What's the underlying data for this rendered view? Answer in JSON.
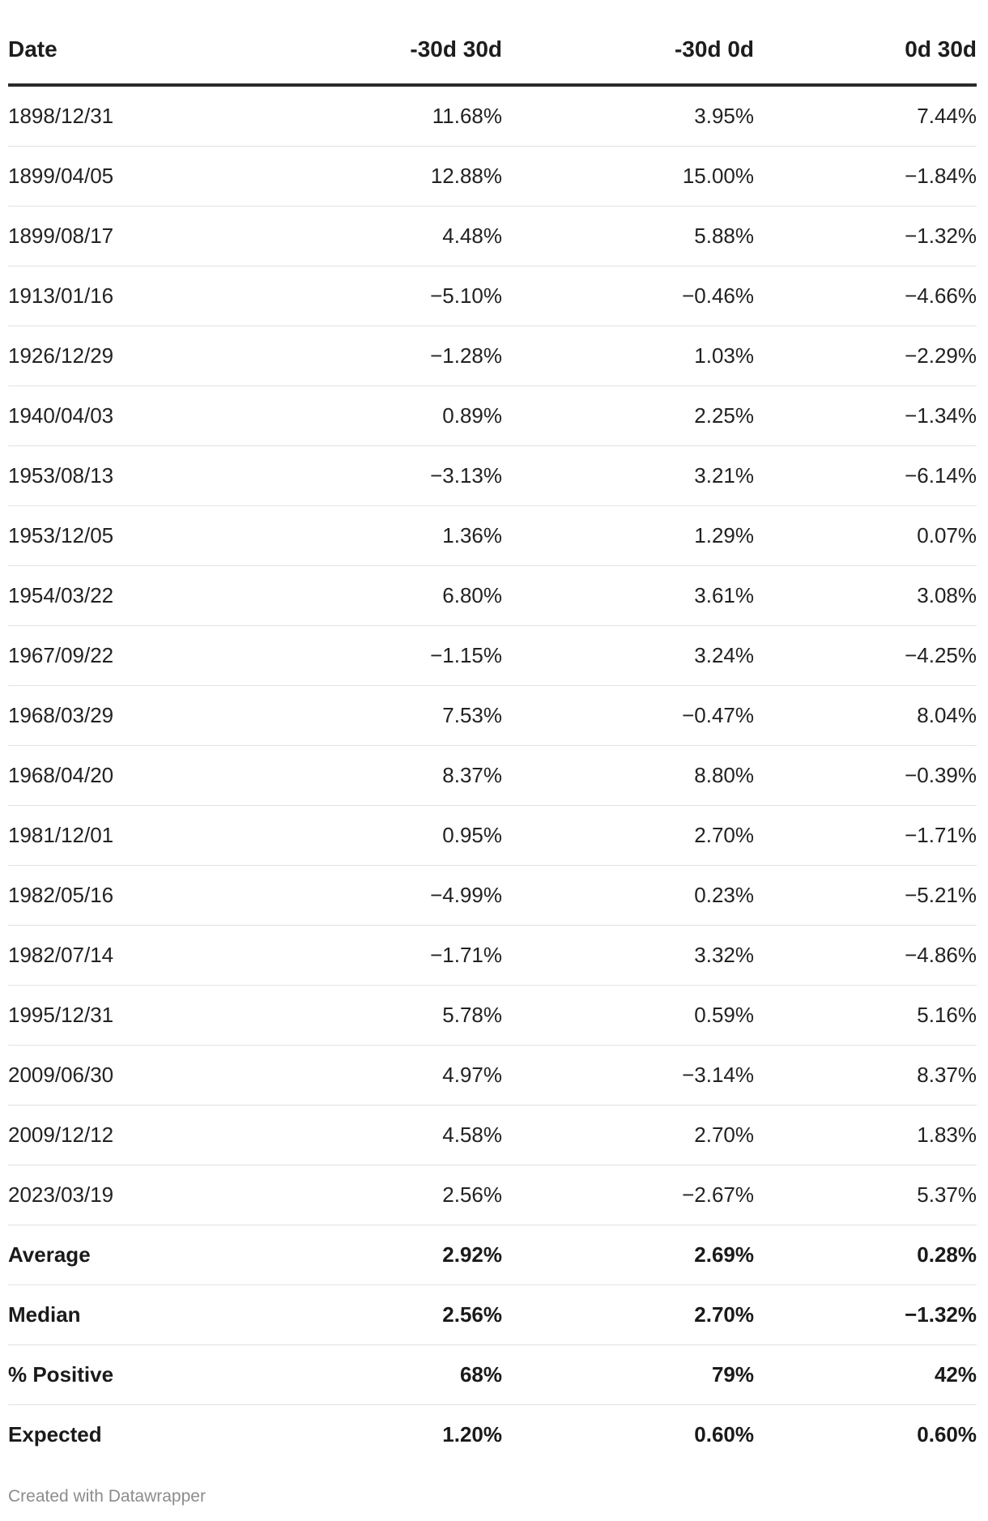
{
  "chart_data": {
    "type": "table",
    "columns": [
      "Date",
      "-30d 30d",
      "-30d 0d",
      "0d 30d"
    ],
    "rows": [
      [
        "1898/12/31",
        "11.68%",
        "3.95%",
        "7.44%"
      ],
      [
        "1899/04/05",
        "12.88%",
        "15.00%",
        "−1.84%"
      ],
      [
        "1899/08/17",
        "4.48%",
        "5.88%",
        "−1.32%"
      ],
      [
        "1913/01/16",
        "−5.10%",
        "−0.46%",
        "−4.66%"
      ],
      [
        "1926/12/29",
        "−1.28%",
        "1.03%",
        "−2.29%"
      ],
      [
        "1940/04/03",
        "0.89%",
        "2.25%",
        "−1.34%"
      ],
      [
        "1953/08/13",
        "−3.13%",
        "3.21%",
        "−6.14%"
      ],
      [
        "1953/12/05",
        "1.36%",
        "1.29%",
        "0.07%"
      ],
      [
        "1954/03/22",
        "6.80%",
        "3.61%",
        "3.08%"
      ],
      [
        "1967/09/22",
        "−1.15%",
        "3.24%",
        "−4.25%"
      ],
      [
        "1968/03/29",
        "7.53%",
        "−0.47%",
        "8.04%"
      ],
      [
        "1968/04/20",
        "8.37%",
        "8.80%",
        "−0.39%"
      ],
      [
        "1981/12/01",
        "0.95%",
        "2.70%",
        "−1.71%"
      ],
      [
        "1982/05/16",
        "−4.99%",
        "0.23%",
        "−5.21%"
      ],
      [
        "1982/07/14",
        "−1.71%",
        "3.32%",
        "−4.86%"
      ],
      [
        "1995/12/31",
        "5.78%",
        "0.59%",
        "5.16%"
      ],
      [
        "2009/06/30",
        "4.97%",
        "−3.14%",
        "8.37%"
      ],
      [
        "2009/12/12",
        "4.58%",
        "2.70%",
        "1.83%"
      ],
      [
        "2023/03/19",
        "2.56%",
        "−2.67%",
        "5.37%"
      ]
    ],
    "summary_rows": [
      [
        "Average",
        "2.92%",
        "2.69%",
        "0.28%"
      ],
      [
        "Median",
        "2.56%",
        "2.70%",
        "−1.32%"
      ],
      [
        "% Positive",
        "68%",
        "79%",
        "42%"
      ],
      [
        "Expected",
        "1.20%",
        "0.60%",
        "0.60%"
      ]
    ]
  },
  "footer": {
    "credit": "Created with Datawrapper"
  },
  "colors": {
    "text": "#1d1d1d",
    "header_rule": "#2b2b2b",
    "row_rule": "#e2e2e2",
    "footer_text": "#8c8c8c"
  }
}
